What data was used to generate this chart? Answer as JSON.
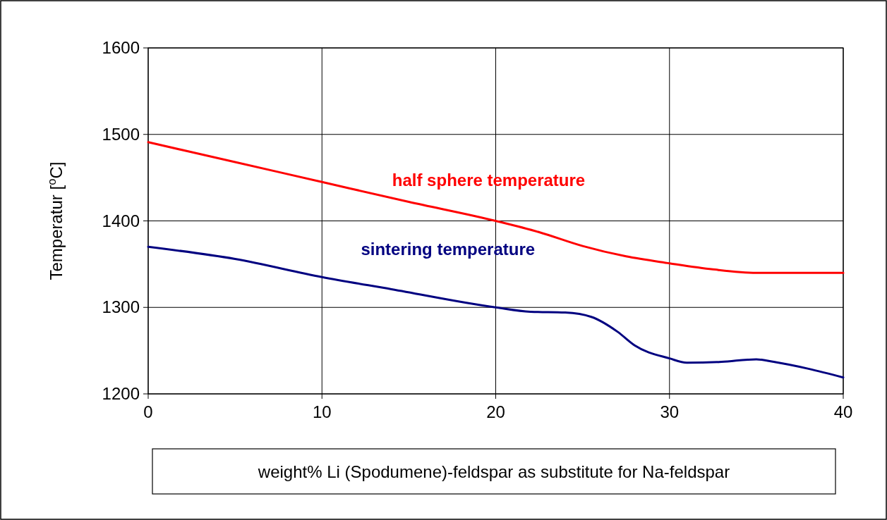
{
  "chart_data": {
    "type": "line",
    "xlabel": "weight% Li (Spodumene)-feldspar as substitute for Na-feldspar",
    "ylabel": "Temperatur [$^{o}$C]",
    "xlim": [
      0,
      40
    ],
    "xticks": [
      0,
      10,
      20,
      30,
      40
    ],
    "ylim": [
      1200,
      1600
    ],
    "yticks": [
      1200,
      1300,
      1400,
      1500,
      1600
    ],
    "grid": true,
    "legend": false,
    "marker": "none",
    "line_style": "solid",
    "series": [
      {
        "name": "half sphere temperature",
        "color": "#ff0000",
        "x": [
          0,
          5,
          10,
          15,
          20,
          22.5,
          25,
          27.5,
          30,
          32.5,
          35,
          40
        ],
        "values": [
          1491,
          1468,
          1445,
          1422,
          1400,
          1387,
          1371,
          1359,
          1351,
          1344,
          1340,
          1340
        ]
      },
      {
        "name": "sintering temperature",
        "color": "#000080",
        "x": [
          0,
          5,
          10,
          14,
          20,
          22,
          24,
          25.5,
          27,
          28,
          30,
          31,
          33,
          35,
          36,
          38,
          40
        ],
        "values": [
          1370,
          1356,
          1335,
          1321,
          1300,
          1295,
          1294,
          1289,
          1272,
          1256,
          1241,
          1236,
          1237,
          1240,
          1237,
          1229,
          1219
        ]
      }
    ]
  }
}
